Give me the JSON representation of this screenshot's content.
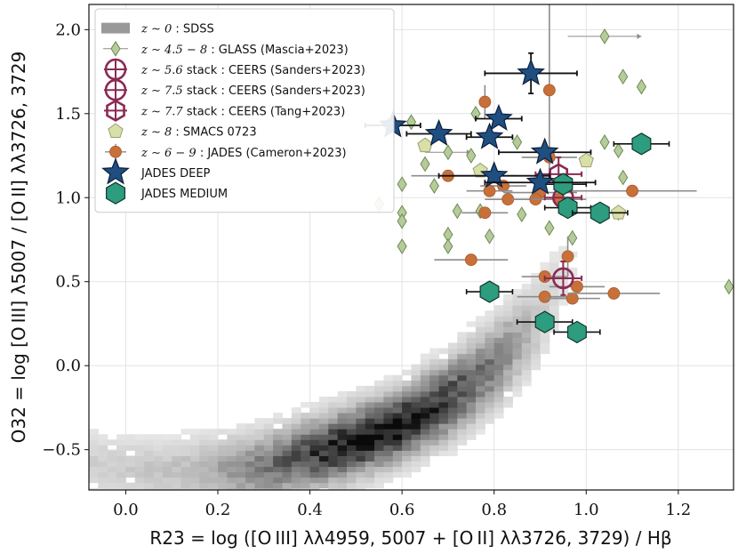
{
  "chart_data": {
    "type": "scatter",
    "xlabel": "R23 = log ([O III] λλ4959, 5007 + [O II] λλ3726, 3729) / Hβ",
    "ylabel": "O32 = log [O III] λ5007 / [O II] λλ3726, 3729",
    "xlim": [
      -0.08,
      1.32
    ],
    "ylim": [
      -0.74,
      2.15
    ],
    "xticks": [
      {
        "value": 0.0,
        "label": "0.0"
      },
      {
        "value": 0.2,
        "label": "0.2"
      },
      {
        "value": 0.4,
        "label": "0.4"
      },
      {
        "value": 0.6,
        "label": "0.6"
      },
      {
        "value": 0.8,
        "label": "0.8"
      },
      {
        "value": 1.0,
        "label": "1.0"
      },
      {
        "value": 1.2,
        "label": "1.2"
      }
    ],
    "yticks": [
      {
        "value": -0.5,
        "label": "−0.5"
      },
      {
        "value": 0.0,
        "label": "0.0"
      },
      {
        "value": 0.5,
        "label": "0.5"
      },
      {
        "value": 1.0,
        "label": "1.0"
      },
      {
        "value": 1.5,
        "label": "1.5"
      },
      {
        "value": 2.0,
        "label": "2.0"
      }
    ],
    "grid": true,
    "legend_position": "top-left",
    "legend": [
      {
        "key": "sdss",
        "math": "z ∼ 0",
        "text": " : SDSS"
      },
      {
        "key": "glass",
        "math": "z ∼ 4.5 − 8",
        "text": " : GLASS (Mascia+2023)"
      },
      {
        "key": "ceers56",
        "math": "z ∼ 5.6",
        "text": " stack : CEERS (Sanders+2023)"
      },
      {
        "key": "ceers75",
        "math": "z ∼ 7.5",
        "text": " stack : CEERS (Sanders+2023)"
      },
      {
        "key": "ceers77",
        "math": "z ∼ 7.7",
        "text": " stack : CEERS (Tang+2023)"
      },
      {
        "key": "smacs",
        "math": "z ∼ 8",
        "text": " : SMACS 0723"
      },
      {
        "key": "cameron",
        "math": "z ∼ 6 − 9",
        "text": " : JADES (Cameron+2023)"
      },
      {
        "key": "deep",
        "math": "",
        "text": "JADES DEEP"
      },
      {
        "key": "medium",
        "math": "",
        "text": "JADES MEDIUM"
      }
    ],
    "colors": {
      "sdss": "#999999",
      "glass_fill": "#b5cc9a",
      "glass_edge": "#6f8a55",
      "ceers": "#8a2a52",
      "smacs_fill": "#d9dfa8",
      "smacs_edge": "#9aa070",
      "cameron": "#c8703a",
      "deep_fill": "#1f4e80",
      "deep_edge": "#0c1f3a",
      "medium_fill": "#2e9c7e",
      "medium_edge": "#0e3a2e",
      "errbar_gray": "#8c8c8c"
    },
    "sdss_ridge": {
      "x": [
        -0.08,
        0.1,
        0.3,
        0.5,
        0.6,
        0.7,
        0.8,
        0.9,
        0.96
      ],
      "y": [
        -0.58,
        -0.64,
        -0.6,
        -0.45,
        -0.35,
        -0.2,
        0.0,
        0.28,
        0.58
      ]
    },
    "series": [
      {
        "name": "GLASS",
        "points": [
          {
            "x": 1.04,
            "y": 1.96,
            "xerr": 0.08,
            "limit": "right"
          },
          {
            "x": 1.08,
            "y": 1.72
          },
          {
            "x": 1.12,
            "y": 1.66
          },
          {
            "x": 0.76,
            "y": 1.5
          },
          {
            "x": 0.62,
            "y": 1.45
          },
          {
            "x": 0.57,
            "y": 1.43
          },
          {
            "x": 0.85,
            "y": 1.33
          },
          {
            "x": 1.04,
            "y": 1.33
          },
          {
            "x": 1.07,
            "y": 1.28
          },
          {
            "x": 0.7,
            "y": 1.27,
            "xerr": 0.05,
            "limit": "right"
          },
          {
            "x": 0.75,
            "y": 1.25
          },
          {
            "x": 0.65,
            "y": 1.2
          },
          {
            "x": 0.6,
            "y": 1.08
          },
          {
            "x": 0.67,
            "y": 1.07
          },
          {
            "x": 1.08,
            "y": 1.12
          },
          {
            "x": 0.55,
            "y": 0.96
          },
          {
            "x": 0.6,
            "y": 0.91
          },
          {
            "x": 0.72,
            "y": 0.92
          },
          {
            "x": 0.77,
            "y": 0.92
          },
          {
            "x": 0.86,
            "y": 0.9
          },
          {
            "x": 1.07,
            "y": 0.91
          },
          {
            "x": 0.6,
            "y": 0.86
          },
          {
            "x": 0.92,
            "y": 0.82
          },
          {
            "x": 0.7,
            "y": 0.78
          },
          {
            "x": 0.79,
            "y": 0.77
          },
          {
            "x": 0.6,
            "y": 0.71
          },
          {
            "x": 0.7,
            "y": 0.71
          },
          {
            "x": 0.97,
            "y": 0.76
          },
          {
            "x": 1.31,
            "y": 0.47
          }
        ]
      },
      {
        "name": "CEERS stacks",
        "points": [
          {
            "x": 0.95,
            "y": 0.52,
            "xerr": 0.04,
            "yerr": 0.1,
            "label": "z~5.6"
          },
          {
            "x": 0.95,
            "y": 1.0,
            "xerr": 0.04,
            "yerr": 0.1,
            "label": "z~7.5"
          },
          {
            "x": 0.94,
            "y": 1.14,
            "xerr": 0.05,
            "yerr": 0.1,
            "label": "z~7.7"
          }
        ]
      },
      {
        "name": "SMACS 0723",
        "points": [
          {
            "x": 0.65,
            "y": 1.31
          },
          {
            "x": 1.0,
            "y": 1.22
          },
          {
            "x": 0.77,
            "y": 1.16
          },
          {
            "x": 1.07,
            "y": 0.91
          }
        ]
      },
      {
        "name": "JADES (Cameron+2023)",
        "points": [
          {
            "x": 0.78,
            "y": 1.57,
            "yerr": 0.1
          },
          {
            "x": 0.92,
            "y": 1.64,
            "yerr": 0.55
          },
          {
            "x": 0.92,
            "y": 1.24,
            "xerr": 0.06
          },
          {
            "x": 0.7,
            "y": 1.13,
            "xerr": 0.08
          },
          {
            "x": 0.8,
            "y": 1.13,
            "xerr": 0.05
          },
          {
            "x": 0.82,
            "y": 1.07,
            "xerr": 0.05
          },
          {
            "x": 1.1,
            "y": 1.04,
            "xerr": 0.14
          },
          {
            "x": 0.79,
            "y": 1.04,
            "xerr": 0.05
          },
          {
            "x": 0.9,
            "y": 1.03,
            "xerr": 0.08
          },
          {
            "x": 0.83,
            "y": 0.99,
            "xerr": 0.05
          },
          {
            "x": 0.89,
            "y": 0.99,
            "xerr": 0.05
          },
          {
            "x": 0.94,
            "y": 0.99,
            "xerr": 0.06
          },
          {
            "x": 0.78,
            "y": 0.91,
            "xerr": 0.05
          },
          {
            "x": 0.96,
            "y": 0.65,
            "yerr": 0.12
          },
          {
            "x": 0.75,
            "y": 0.63,
            "xerr": 0.08
          },
          {
            "x": 0.91,
            "y": 0.53,
            "xerr": 0.05
          },
          {
            "x": 0.98,
            "y": 0.47,
            "xerr": 0.06
          },
          {
            "x": 0.91,
            "y": 0.41,
            "xerr": 0.06
          },
          {
            "x": 0.97,
            "y": 0.4,
            "xerr": 0.06
          },
          {
            "x": 1.06,
            "y": 0.43,
            "xerr": 0.1
          }
        ]
      },
      {
        "name": "JADES DEEP",
        "points": [
          {
            "x": 0.88,
            "y": 1.74,
            "xerr": 0.1,
            "yerr": 0.12
          },
          {
            "x": 0.58,
            "y": 1.43,
            "xerr": 0.06
          },
          {
            "x": 0.68,
            "y": 1.38,
            "xerr": 0.07
          },
          {
            "x": 0.81,
            "y": 1.47,
            "xerr": 0.05
          },
          {
            "x": 0.79,
            "y": 1.36,
            "xerr": 0.05
          },
          {
            "x": 0.91,
            "y": 1.27,
            "xerr": 0.1
          },
          {
            "x": 0.8,
            "y": 1.13,
            "xerr": 0.12
          },
          {
            "x": 0.9,
            "y": 1.09,
            "xerr": 0.12
          }
        ]
      },
      {
        "name": "JADES MEDIUM",
        "points": [
          {
            "x": 1.12,
            "y": 1.32,
            "xerr": 0.06
          },
          {
            "x": 0.95,
            "y": 1.08,
            "xerr": 0.05
          },
          {
            "x": 0.96,
            "y": 0.94,
            "xerr": 0.05
          },
          {
            "x": 1.03,
            "y": 0.91,
            "xerr": 0.06
          },
          {
            "x": 0.79,
            "y": 0.44,
            "xerr": 0.05
          },
          {
            "x": 0.91,
            "y": 0.26,
            "xerr": 0.06
          },
          {
            "x": 0.98,
            "y": 0.2,
            "xerr": 0.05
          }
        ]
      }
    ]
  }
}
